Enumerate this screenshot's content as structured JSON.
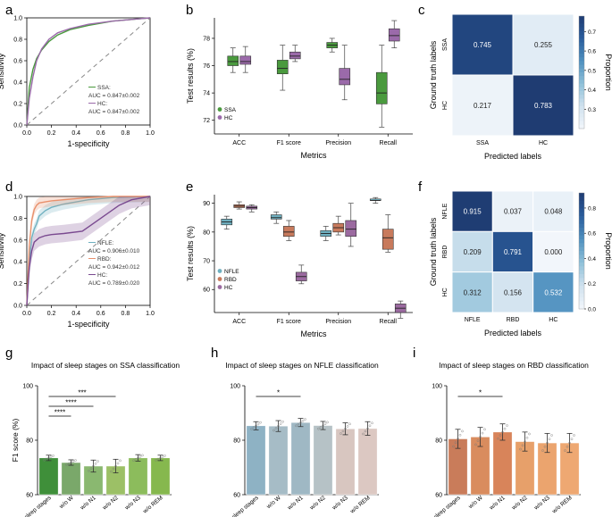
{
  "colors": {
    "green": "#4a9a3e",
    "purple": "#9b6aaa",
    "teal": "#6fb0c0",
    "brown": "#c87a5c",
    "mauve": "#9b6aa0",
    "pink": "#e8a090",
    "blue": "#7fb5d0",
    "orange": "#f0b070",
    "cm_dark": "#1f3c72",
    "cm_light": "#f2f6fb",
    "gray_bar": "#c8c8c8",
    "h_bars": [
      "#8eb2c4",
      "#a6bcc6",
      "#9fb8c4",
      "#b6c2c6",
      "#d8c6c0",
      "#dcc8c2"
    ],
    "i_bars": [
      "#c97c5a",
      "#d98c5e",
      "#d8845a",
      "#e7a06a",
      "#eba46e",
      "#eea872"
    ],
    "g_bars": [
      "#3f8f3a",
      "#7aa86a",
      "#8ab870",
      "#9cc066",
      "#8cbc5c",
      "#86b84e"
    ]
  },
  "chart_data": [
    {
      "panel": "a",
      "type": "line",
      "xlabel": "1-specificity",
      "ylabel": "Sensitivity",
      "xlim": [
        0,
        1
      ],
      "ylim": [
        0,
        1
      ],
      "ticks": [
        "0.0",
        "0.2",
        "0.4",
        "0.6",
        "0.8",
        "1.0"
      ],
      "series": [
        {
          "name": "SSA",
          "color": "#4a9a3e",
          "x": [
            0,
            0.02,
            0.05,
            0.08,
            0.12,
            0.18,
            0.25,
            0.35,
            0.5,
            0.7,
            0.9,
            1
          ],
          "y": [
            0,
            0.35,
            0.52,
            0.62,
            0.7,
            0.78,
            0.84,
            0.89,
            0.93,
            0.97,
            0.99,
            1
          ]
        },
        {
          "name": "HC",
          "color": "#9b6aaa",
          "x": [
            0,
            0.02,
            0.05,
            0.08,
            0.12,
            0.18,
            0.25,
            0.35,
            0.5,
            0.7,
            0.9,
            1
          ],
          "y": [
            0,
            0.25,
            0.45,
            0.6,
            0.71,
            0.8,
            0.86,
            0.9,
            0.94,
            0.97,
            0.99,
            1
          ]
        }
      ],
      "legend_lines": [
        "SSA:",
        "AUC = 0.847±0.002",
        "HC:",
        "AUC = 0.847±0.002"
      ]
    },
    {
      "panel": "b",
      "type": "box",
      "xlabel": "Metrics",
      "ylabel": "Test results (%)",
      "ylim": [
        71,
        79.5
      ],
      "yticks": [
        72,
        74,
        76,
        78
      ],
      "categories": [
        "ACC",
        "F1 score",
        "Precision",
        "Recall"
      ],
      "series": [
        {
          "name": "SSA",
          "color": "#4a9a3e",
          "boxes": [
            [
              75.5,
              76.0,
              76.3,
              76.7,
              77.3
            ],
            [
              74.2,
              75.4,
              75.8,
              76.4,
              77.5
            ],
            [
              77.0,
              77.3,
              77.5,
              77.7,
              78.0
            ],
            [
              71.5,
              73.2,
              74.0,
              75.5,
              77.5
            ]
          ]
        },
        {
          "name": "HC",
          "color": "#9b6aaa",
          "boxes": [
            [
              75.5,
              76.1,
              76.3,
              76.7,
              77.4
            ],
            [
              76.3,
              76.5,
              76.7,
              77.0,
              77.5
            ],
            [
              73.5,
              74.6,
              75.0,
              75.8,
              77.5
            ],
            [
              77.3,
              77.8,
              78.2,
              78.7,
              79.3
            ]
          ]
        }
      ]
    },
    {
      "panel": "c",
      "type": "heatmap",
      "xlabel": "Predicted labels",
      "ylabel": "Ground truth labels",
      "labels": [
        "SSA",
        "HC"
      ],
      "matrix": [
        [
          0.745,
          0.255
        ],
        [
          0.217,
          0.783
        ]
      ],
      "matrix_text": [
        [
          "0.745",
          "0.255"
        ],
        [
          "0.217",
          "0.783"
        ]
      ],
      "colorbar_label": "Proportion",
      "colorbar_ticks": [
        "0.7",
        "0.6",
        "0.5",
        "0.4",
        "0.3"
      ],
      "colorbar_values": [
        0.7,
        0.6,
        0.5,
        0.4,
        0.3
      ],
      "vrange": [
        0.2,
        0.78
      ]
    },
    {
      "panel": "d",
      "type": "line",
      "xlabel": "1-specificity",
      "ylabel": "Sensitivity",
      "xlim": [
        0,
        1
      ],
      "ylim": [
        0,
        1
      ],
      "ticks": [
        "0.0",
        "0.2",
        "0.4",
        "0.6",
        "0.8",
        "1.0"
      ],
      "series": [
        {
          "name": "NFLE",
          "color": "#6fb0c0",
          "x": [
            0,
            0.02,
            0.04,
            0.06,
            0.08,
            0.1,
            0.15,
            0.2,
            0.3,
            0.5,
            0.7,
            1
          ],
          "y": [
            0,
            0.4,
            0.62,
            0.7,
            0.75,
            0.82,
            0.87,
            0.9,
            0.93,
            0.97,
            0.99,
            1
          ]
        },
        {
          "name": "RBD",
          "color": "#e8906c",
          "x": [
            0,
            0.02,
            0.04,
            0.06,
            0.08,
            0.1,
            0.15,
            0.2,
            0.3,
            0.5,
            0.7,
            1
          ],
          "y": [
            0,
            0.55,
            0.78,
            0.88,
            0.92,
            0.94,
            0.95,
            0.96,
            0.97,
            0.99,
            1,
            1
          ]
        },
        {
          "name": "HC",
          "color": "#7a4a90",
          "x": [
            0,
            0.02,
            0.04,
            0.06,
            0.08,
            0.1,
            0.15,
            0.2,
            0.3,
            0.45,
            0.6,
            0.75,
            0.85,
            1
          ],
          "y": [
            0,
            0.35,
            0.5,
            0.58,
            0.6,
            0.62,
            0.64,
            0.65,
            0.66,
            0.68,
            0.8,
            0.92,
            0.97,
            1
          ]
        }
      ],
      "legend_lines": [
        "NFLE:",
        "AUC = 0.906±0.010",
        "RBD:",
        "AUC = 0.942±0.012",
        "HC:",
        "AUC = 0.789±0.020"
      ]
    },
    {
      "panel": "e",
      "type": "box",
      "xlabel": "Metrics",
      "ylabel": "Test results (%)",
      "ylim": [
        52,
        93
      ],
      "yticks": [
        60,
        70,
        80,
        90
      ],
      "categories": [
        "ACC",
        "F1 score",
        "Precision",
        "Recall"
      ],
      "series": [
        {
          "name": "NFLE",
          "color": "#6fb0c0",
          "boxes": [
            [
              81,
              82.5,
              83.5,
              84.5,
              85.5
            ],
            [
              83,
              84.5,
              85,
              86,
              87
            ],
            [
              77,
              78.5,
              79.5,
              80.5,
              82
            ],
            [
              90,
              91,
              91,
              91.5,
              92
            ]
          ]
        },
        {
          "name": "RBD",
          "color": "#c87a5c",
          "boxes": [
            [
              88,
              88.5,
              89,
              89.5,
              90.5
            ],
            [
              77,
              78.5,
              80,
              82,
              84
            ],
            [
              79,
              80,
              81.5,
              83,
              85.5
            ],
            [
              73,
              74,
              78,
              81,
              86
            ]
          ]
        },
        {
          "name": "HC",
          "color": "#9b6aa0",
          "boxes": [
            [
              87,
              88,
              88.5,
              89,
              89.5
            ],
            [
              62,
              63,
              64.5,
              66,
              68.5
            ],
            [
              75,
              78.5,
              81,
              84,
              90
            ],
            [
              50,
              52,
              53.5,
              55,
              56
            ]
          ]
        }
      ]
    },
    {
      "panel": "f",
      "type": "heatmap",
      "xlabel": "Predicted labels",
      "ylabel": "Ground truth labels",
      "labels": [
        "NFLE",
        "RBD",
        "HC"
      ],
      "matrix": [
        [
          0.915,
          0.037,
          0.048
        ],
        [
          0.209,
          0.791,
          0.0
        ],
        [
          0.312,
          0.156,
          0.532
        ]
      ],
      "matrix_text": [
        [
          "0.915",
          "0.037",
          "0.048"
        ],
        [
          "0.209",
          "0.791",
          "0.000"
        ],
        [
          "0.312",
          "0.156",
          "0.532"
        ]
      ],
      "colorbar_label": "Proportion",
      "colorbar_ticks": [
        "0.8",
        "0.6",
        "0.4",
        "0.2",
        "0.0"
      ],
      "colorbar_values": [
        0.8,
        0.6,
        0.4,
        0.2,
        0.0
      ],
      "vrange": [
        0,
        0.92
      ]
    },
    {
      "panel": "g",
      "type": "bar",
      "title": "Impact of sleep stages on SSA classification",
      "ylabel": "F1 score (%)",
      "ylim": [
        60,
        100
      ],
      "yticks": [
        60,
        80,
        100
      ],
      "categories": [
        "All five sleep stages",
        "w/o W",
        "w/o N1",
        "w/o N2",
        "w/o N3",
        "w/o REM"
      ],
      "values": [
        73.5,
        71.8,
        70.5,
        70.5,
        73.5,
        73.5
      ],
      "errors": [
        1.0,
        1.0,
        2.2,
        2.5,
        1.2,
        1.0
      ],
      "significance": [
        {
          "from": 0,
          "to": 3,
          "label": "***"
        },
        {
          "from": 0,
          "to": 2,
          "label": "****"
        },
        {
          "from": 0,
          "to": 1,
          "label": "****"
        }
      ]
    },
    {
      "panel": "h",
      "type": "bar",
      "title": "Impact of sleep stages on NFLE classification",
      "ylabel": "",
      "ylim": [
        60,
        100
      ],
      "yticks": [
        60,
        80,
        100
      ],
      "categories": [
        "All five sleep stages",
        "w/o W",
        "w/o N1",
        "w/o N2",
        "w/o N3",
        "w/o REM"
      ],
      "values": [
        85.3,
        85.2,
        86.5,
        85.4,
        84.2,
        84.3
      ],
      "errors": [
        1.5,
        2.0,
        1.5,
        1.5,
        2.2,
        2.5
      ],
      "significance": [
        {
          "from": 0,
          "to": 2,
          "label": "*"
        }
      ]
    },
    {
      "panel": "i",
      "type": "bar",
      "title": "Impact of sleep stages on RBD classification",
      "ylabel": "",
      "ylim": [
        60,
        100
      ],
      "yticks": [
        60,
        80,
        100
      ],
      "categories": [
        "All five sleep stages",
        "w/o W",
        "w/o N1",
        "w/o N2",
        "w/o N3",
        "w/o REM"
      ],
      "values": [
        80.5,
        81.2,
        83.0,
        79.5,
        79.0,
        79.0
      ],
      "errors": [
        3.5,
        3.5,
        3.0,
        3.5,
        3.5,
        3.5
      ],
      "significance": [
        {
          "from": 0,
          "to": 2,
          "label": "*"
        }
      ]
    }
  ]
}
